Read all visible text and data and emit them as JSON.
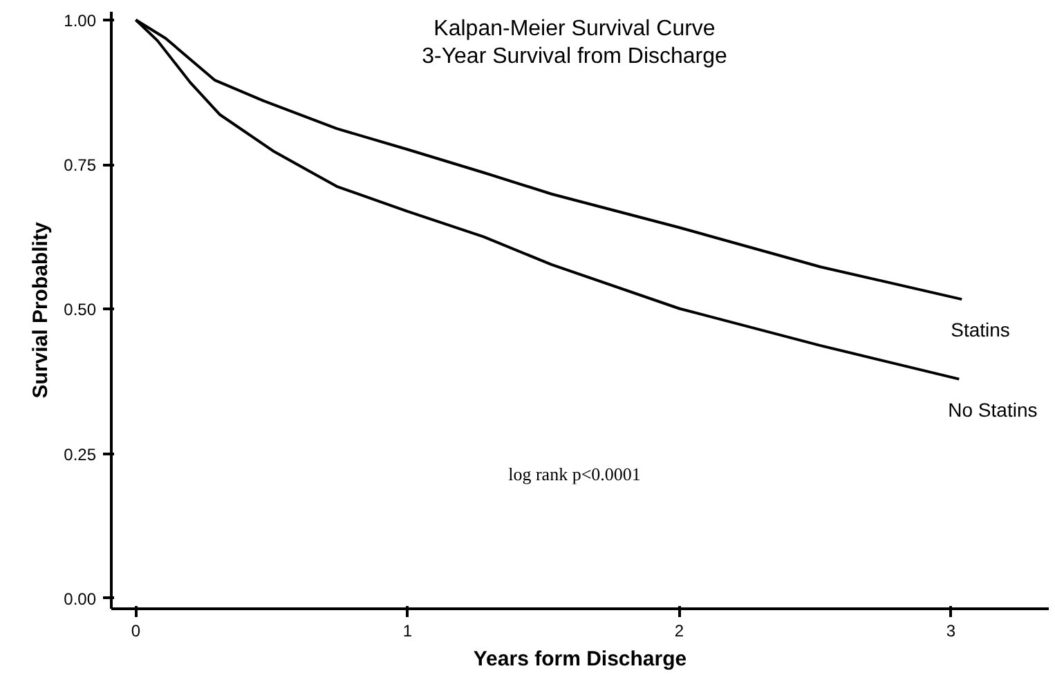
{
  "chart_data": {
    "type": "line",
    "title": "Kalpan-Meier Survival Curve\n3-Year Survival from Discharge",
    "xlabel": "Years form Discharge",
    "ylabel": "Survial Probablity",
    "annotations": [
      "log rank p<0.0001"
    ],
    "series": [
      {
        "name": "Statins",
        "color": "#000000",
        "x": [
          0,
          0.11,
          0.29,
          0.47,
          0.74,
          1.0,
          1.28,
          1.53,
          2.0,
          2.52,
          3.04
        ],
        "values": [
          1.0,
          0.968,
          0.896,
          0.86,
          0.812,
          0.776,
          0.736,
          0.699,
          0.641,
          0.573,
          0.517
        ]
      },
      {
        "name": "No Statins",
        "color": "#000000",
        "x": [
          0,
          0.08,
          0.2,
          0.31,
          0.51,
          0.74,
          1.0,
          1.28,
          1.53,
          2.0,
          2.52,
          3.03
        ],
        "values": [
          1.0,
          0.964,
          0.892,
          0.836,
          0.772,
          0.712,
          0.669,
          0.625,
          0.577,
          0.501,
          0.437,
          0.379
        ]
      }
    ],
    "xlim": [
      -0.09,
      3.36
    ],
    "ylim": [
      -0.018,
      1.014
    ],
    "xticks": [
      0,
      1,
      2,
      3
    ],
    "yticks": [
      {
        "value": 0,
        "label": "0.00"
      },
      {
        "value": 0.25,
        "label": "0.25"
      },
      {
        "value": 0.5,
        "label": "0.50"
      },
      {
        "value": 0.75,
        "label": "0.75"
      },
      {
        "value": 1,
        "label": "1.00"
      }
    ],
    "grid": false,
    "legend": false,
    "marker": "none",
    "line_style": "solid"
  }
}
